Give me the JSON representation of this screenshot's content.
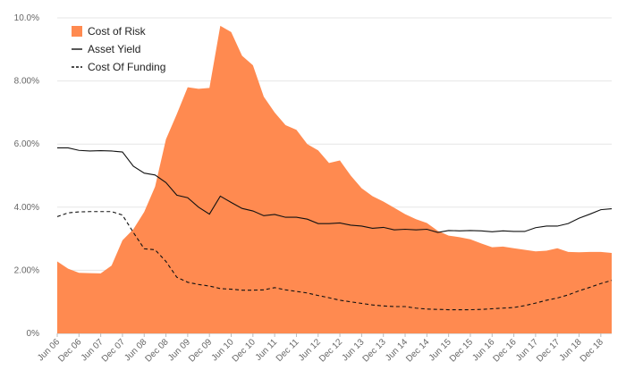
{
  "chart_data": {
    "type": "area",
    "title": "",
    "xlabel": "",
    "ylabel": "",
    "ylim": [
      0,
      10
    ],
    "ytick_values": [
      0,
      2,
      4,
      6,
      8,
      10
    ],
    "ytick_labels": [
      "0%",
      "2.00%",
      "4.00%",
      "6.00%",
      "8.00%",
      "10.0%"
    ],
    "grid": "horizontal",
    "legend_position": "top-left",
    "x_tick_labels": [
      "Jun 06",
      "Dec 06",
      "Jun 07",
      "Dec 07",
      "Jun 08",
      "Dec 08",
      "Jun 09",
      "Dec 09",
      "Jun 10",
      "Dec 10",
      "Jun 11",
      "Dec 11",
      "Jun 12",
      "Dec 12",
      "Jun 13",
      "Dec 13",
      "Jun 14",
      "Dec 14",
      "Jun 15",
      "Dec 15",
      "Jun 16",
      "Dec 16",
      "Jun 17",
      "Dec 17",
      "Jun 18",
      "Dec 18"
    ],
    "x": [
      "Jun 06",
      "Sep 06",
      "Dec 06",
      "Mar 07",
      "Jun 07",
      "Sep 07",
      "Dec 07",
      "Mar 08",
      "Jun 08",
      "Sep 08",
      "Dec 08",
      "Mar 09",
      "Jun 09",
      "Sep 09",
      "Dec 09",
      "Mar 10",
      "Jun 10",
      "Sep 10",
      "Dec 10",
      "Mar 11",
      "Jun 11",
      "Sep 11",
      "Dec 11",
      "Mar 12",
      "Jun 12",
      "Sep 12",
      "Dec 12",
      "Mar 13",
      "Jun 13",
      "Sep 13",
      "Dec 13",
      "Mar 14",
      "Jun 14",
      "Sep 14",
      "Dec 14",
      "Mar 15",
      "Jun 15",
      "Sep 15",
      "Dec 15",
      "Mar 16",
      "Jun 16",
      "Sep 16",
      "Dec 16",
      "Mar 17",
      "Jun 17",
      "Sep 17",
      "Dec 17",
      "Mar 18",
      "Jun 18",
      "Sep 18",
      "Dec 18",
      "Mar 19"
    ],
    "series": [
      {
        "name": "Cost of Risk",
        "kind": "area",
        "color": "#ff8a50",
        "values": [
          2.28,
          2.05,
          1.92,
          1.91,
          1.9,
          2.15,
          2.95,
          3.3,
          3.85,
          4.65,
          6.15,
          6.95,
          7.8,
          7.75,
          7.78,
          9.75,
          9.55,
          8.8,
          8.5,
          7.5,
          7.0,
          6.6,
          6.45,
          6.0,
          5.8,
          5.4,
          5.48,
          5.0,
          4.6,
          4.35,
          4.18,
          3.98,
          3.78,
          3.62,
          3.5,
          3.25,
          3.1,
          3.05,
          2.98,
          2.85,
          2.73,
          2.75,
          2.7,
          2.65,
          2.6,
          2.62,
          2.7,
          2.58,
          2.57,
          2.58,
          2.58,
          2.55
        ]
      },
      {
        "name": "Asset Yield",
        "kind": "line-solid",
        "color": "#111111",
        "values": [
          5.88,
          5.88,
          5.8,
          5.78,
          5.79,
          5.78,
          5.75,
          5.3,
          5.08,
          5.02,
          4.78,
          4.38,
          4.3,
          4.0,
          3.78,
          4.35,
          4.15,
          3.96,
          3.88,
          3.73,
          3.77,
          3.68,
          3.68,
          3.62,
          3.48,
          3.48,
          3.5,
          3.43,
          3.4,
          3.33,
          3.36,
          3.28,
          3.3,
          3.28,
          3.3,
          3.2,
          3.26,
          3.25,
          3.26,
          3.25,
          3.22,
          3.25,
          3.23,
          3.23,
          3.35,
          3.4,
          3.4,
          3.48,
          3.65,
          3.78,
          3.92,
          3.95
        ]
      },
      {
        "name": "Cost Of Funding",
        "kind": "line-dashed",
        "color": "#111111",
        "values": [
          3.7,
          3.82,
          3.85,
          3.86,
          3.86,
          3.86,
          3.75,
          3.2,
          2.68,
          2.65,
          2.28,
          1.78,
          1.62,
          1.55,
          1.5,
          1.42,
          1.4,
          1.37,
          1.37,
          1.38,
          1.45,
          1.38,
          1.33,
          1.28,
          1.2,
          1.13,
          1.05,
          1.0,
          0.95,
          0.9,
          0.87,
          0.85,
          0.85,
          0.8,
          0.77,
          0.76,
          0.75,
          0.75,
          0.75,
          0.76,
          0.78,
          0.8,
          0.82,
          0.88,
          0.96,
          1.05,
          1.12,
          1.22,
          1.35,
          1.46,
          1.58,
          1.68
        ]
      }
    ]
  }
}
